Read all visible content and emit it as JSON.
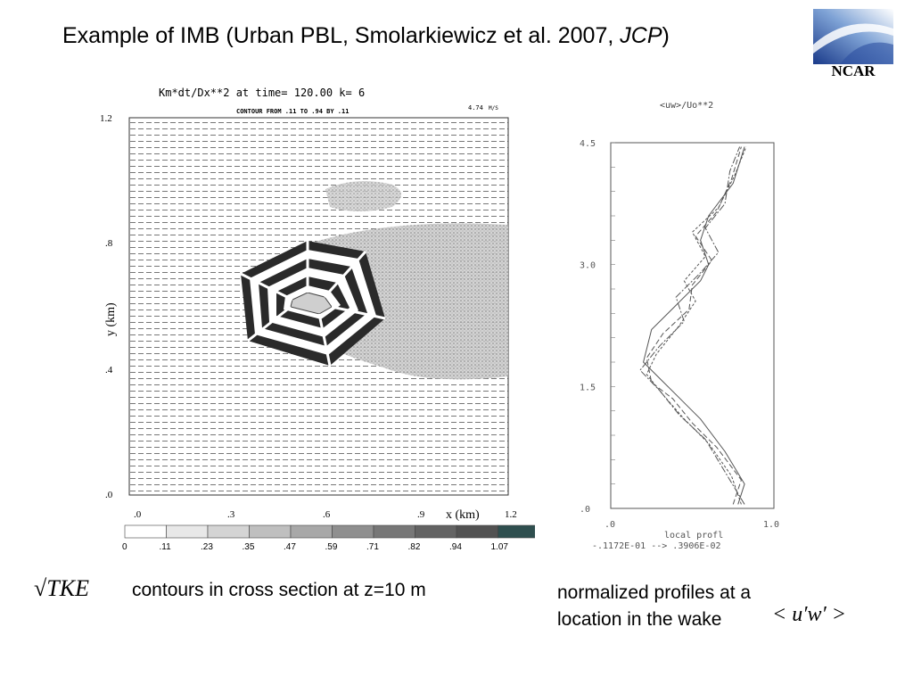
{
  "slide": {
    "title_main": "Example of IMB  (Urban PBL, Smolarkiewicz et al. 2007, ",
    "title_em": "JCP",
    "title_close": ")",
    "org_label": "NCAR"
  },
  "left_plot": {
    "header": "Km*dt/Dx**2      at time=     120.00   k=    6",
    "subheader": "CONTOUR FROM .11 TO .94 BY .11",
    "vector_scale": "4.74",
    "vector_unit": "M/S",
    "y_label": "y (km)",
    "x_label": "x (km)",
    "y_ticks": [
      "1.2",
      ".8",
      ".4",
      ".0"
    ],
    "x_ticks": [
      ".0",
      ".3",
      ".6",
      ".9",
      "1.2"
    ],
    "colorbar_labels": [
      "0",
      ".11",
      ".23",
      ".35",
      ".47",
      ".59",
      ".71",
      ".82",
      ".94",
      "1.07"
    ],
    "colorbar_colors": [
      "#ffffff",
      "#e8e8e8",
      "#d4d4d4",
      "#bfbfbf",
      "#a8a8a8",
      "#8f8f8f",
      "#777777",
      "#636363",
      "#525252",
      "#2f4f4f"
    ]
  },
  "chart_data": {
    "type": "line",
    "title": "<uw>/Uo**2",
    "xlabel": "local profl",
    "ylabel": "",
    "xlim": [
      0.0,
      1.0
    ],
    "ylim": [
      0.0,
      4.5
    ],
    "x_ticks": [
      ".0",
      "1.0"
    ],
    "y_ticks": [
      "4.5",
      "3.0",
      "1.5",
      ".0"
    ],
    "range_note": "-.1172E-01 -->  .3906E-02",
    "series": [
      {
        "values_x": [
          0.78,
          0.82,
          0.7,
          0.55,
          0.45,
          0.3,
          0.2,
          0.25,
          0.4,
          0.55,
          0.6,
          0.55,
          0.6,
          0.75,
          0.82
        ],
        "values_y": [
          0.05,
          0.3,
          0.7,
          1.1,
          1.3,
          1.6,
          1.8,
          2.2,
          2.5,
          2.8,
          3.0,
          3.3,
          3.6,
          4.0,
          4.45
        ]
      },
      {
        "values_x": [
          0.75,
          0.8,
          0.65,
          0.5,
          0.38,
          0.25,
          0.22,
          0.32,
          0.48,
          0.5,
          0.62,
          0.52,
          0.65,
          0.74,
          0.8
        ],
        "values_y": [
          0.05,
          0.35,
          0.75,
          1.05,
          1.35,
          1.55,
          1.85,
          2.15,
          2.45,
          2.75,
          3.05,
          3.35,
          3.65,
          4.05,
          4.45
        ]
      },
      {
        "values_x": [
          0.8,
          0.74,
          0.6,
          0.45,
          0.32,
          0.22,
          0.28,
          0.42,
          0.52,
          0.45,
          0.58,
          0.5,
          0.66,
          0.76,
          0.83
        ],
        "values_y": [
          0.05,
          0.4,
          0.8,
          1.1,
          1.4,
          1.65,
          1.9,
          2.25,
          2.55,
          2.8,
          3.1,
          3.4,
          3.7,
          4.1,
          4.45
        ]
      },
      {
        "values_x": [
          0.82,
          0.7,
          0.58,
          0.42,
          0.3,
          0.18,
          0.3,
          0.45,
          0.4,
          0.55,
          0.66,
          0.58,
          0.7,
          0.73,
          0.79
        ],
        "values_y": [
          0.05,
          0.45,
          0.85,
          1.15,
          1.45,
          1.7,
          2.0,
          2.3,
          2.6,
          2.9,
          3.15,
          3.45,
          3.75,
          4.15,
          4.45
        ]
      }
    ]
  },
  "captions": {
    "tke_formula": "√TKE",
    "left_caption": "contours in cross section at z=10 m",
    "right_caption_line1": "normalized profiles at a",
    "right_caption_line2": "location in the wake",
    "uw_formula": "< u′w′ >"
  }
}
